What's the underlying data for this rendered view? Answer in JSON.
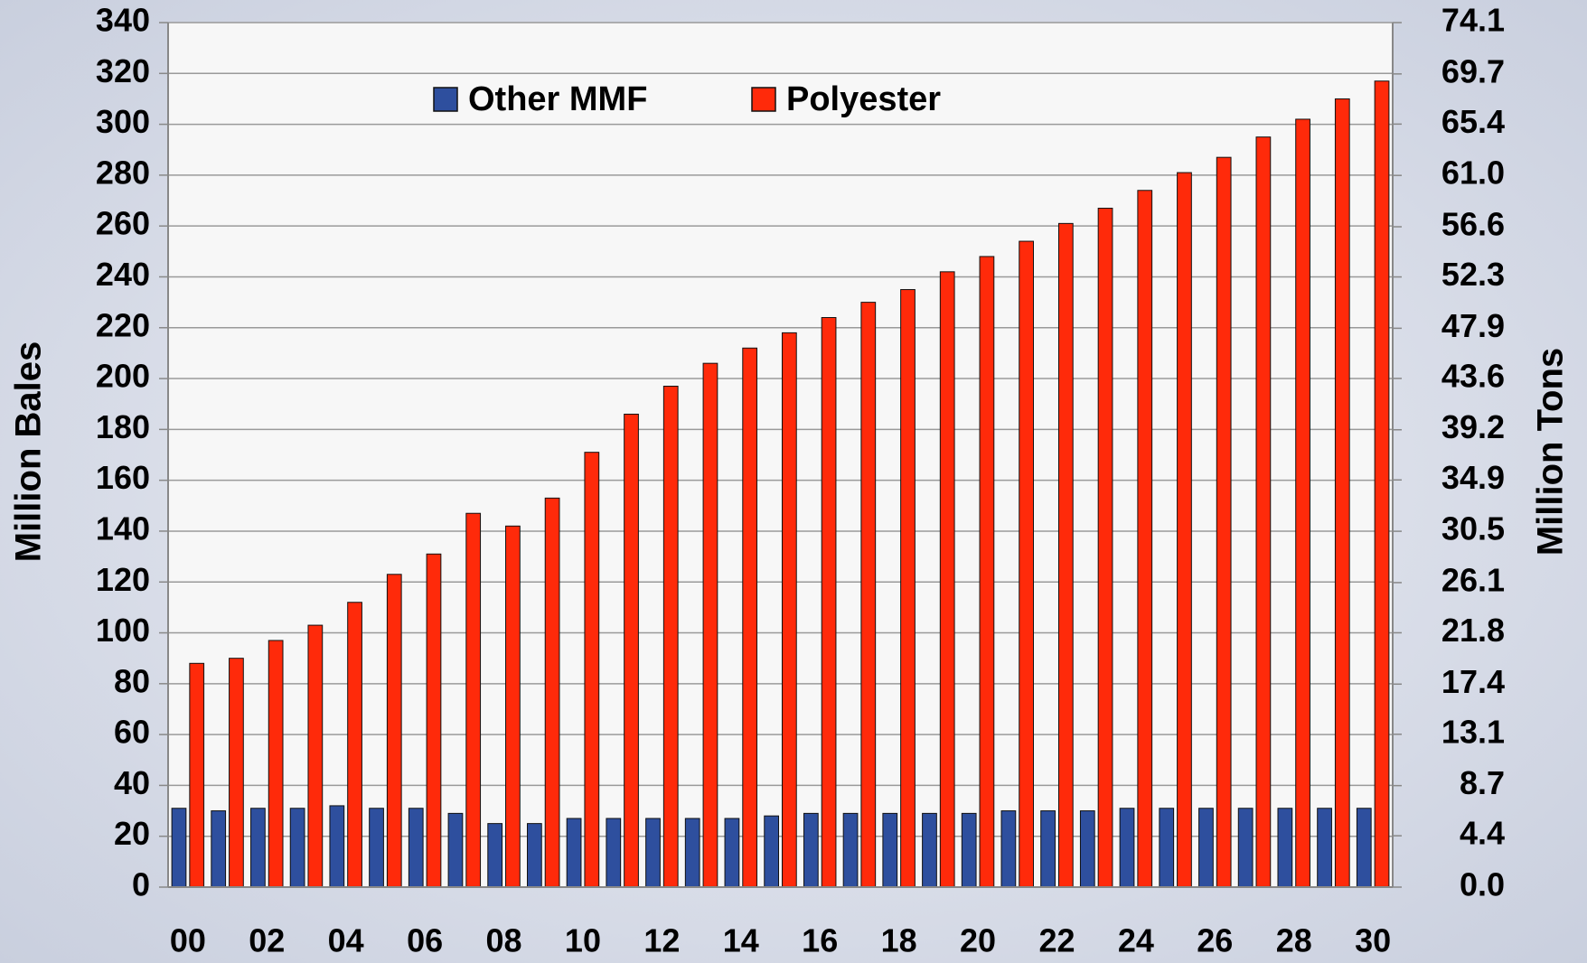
{
  "chart_data": {
    "type": "bar",
    "categories": [
      "00",
      null,
      "02",
      null,
      "04",
      null,
      "06",
      null,
      "08",
      null,
      "10",
      null,
      "12",
      null,
      "14",
      null,
      "16",
      null,
      "18",
      null,
      "20",
      null,
      "22",
      null,
      "24",
      null,
      "26",
      null,
      "28",
      null,
      "30"
    ],
    "series": [
      {
        "name": "Other MMF",
        "color": "#2e4f9e",
        "values": [
          31,
          30,
          31,
          31,
          32,
          31,
          31,
          29,
          25,
          25,
          27,
          27,
          27,
          27,
          27,
          28,
          29,
          29,
          29,
          29,
          29,
          30,
          30,
          30,
          31,
          31,
          31,
          31,
          31,
          31,
          31
        ]
      },
      {
        "name": "Polyester",
        "color": "#ff2a0a",
        "values": [
          88,
          90,
          97,
          103,
          112,
          123,
          131,
          147,
          142,
          153,
          171,
          186,
          197,
          206,
          212,
          218,
          224,
          230,
          235,
          242,
          248,
          254,
          261,
          267,
          274,
          281,
          287,
          295,
          302,
          310,
          317
        ]
      }
    ],
    "y_label": "Million Bales",
    "y2_label": "Million Tons",
    "ylim": [
      0,
      340
    ],
    "yticks": [
      0,
      20,
      40,
      60,
      80,
      100,
      120,
      140,
      160,
      180,
      200,
      220,
      240,
      260,
      280,
      300,
      320,
      340
    ],
    "y2lim": [
      0,
      74.1
    ],
    "y2ticks": [
      {
        "value": 0,
        "label": "0.0"
      },
      4.4,
      8.7,
      13.1,
      17.4,
      21.8,
      26.1,
      30.5,
      34.9,
      39.2,
      43.6,
      47.9,
      52.3,
      56.6,
      {
        "value": 61,
        "label": "61.0"
      },
      65.4,
      69.7,
      74.1
    ],
    "grid": true,
    "legend": "top"
  }
}
